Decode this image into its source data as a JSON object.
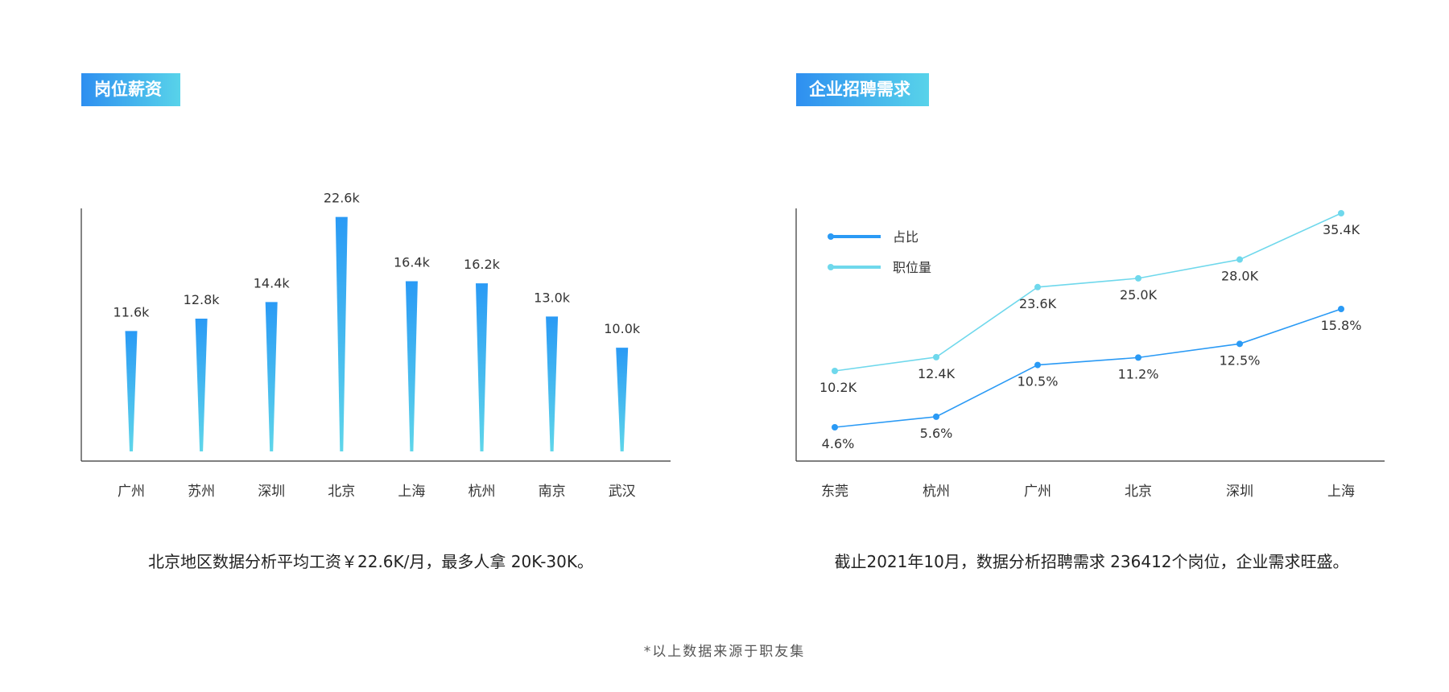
{
  "left_panel": {
    "title": "岗位薪资",
    "caption": "北京地区数据分析平均工资￥22.6K/月，最多人拿 20K-30K。"
  },
  "right_panel": {
    "title": "企业招聘需求",
    "caption": "截止2021年10月，数据分析招聘需求 236412个岗位，企业需求旺盛。"
  },
  "footnote": "*以上数据来源于职友集",
  "colors": {
    "title_gradient": [
      "#2e8ff0",
      "#58d3ea"
    ],
    "bar_top": "#2a9af5",
    "bar_bottom": "#5fd6ea",
    "series_share": "#2a9af5",
    "series_positions": "#6fd8ec"
  },
  "chart_data": [
    {
      "type": "bar",
      "categories": [
        "广州",
        "苏州",
        "深圳",
        "北京",
        "上海",
        "杭州",
        "南京",
        "武汉"
      ],
      "values": [
        11.6,
        12.8,
        14.4,
        22.6,
        16.4,
        16.2,
        13.0,
        10.0
      ],
      "labels": [
        "11.6k",
        "12.8k",
        "14.4k",
        "22.6k",
        "16.4k",
        "16.2k",
        "13.0k",
        "10.0k"
      ],
      "ylim": [
        0,
        23.5
      ],
      "grid": false
    },
    {
      "type": "line",
      "categories": [
        "东莞",
        "杭州",
        "广州",
        "北京",
        "深圳",
        "上海"
      ],
      "series": [
        {
          "name": "占比",
          "values": [
            4.6,
            5.6,
            10.5,
            11.2,
            12.5,
            15.8
          ],
          "labels": [
            "4.6%",
            "5.6%",
            "10.5%",
            "11.2%",
            "12.5%",
            "15.8%"
          ]
        },
        {
          "name": "职位量",
          "values": [
            10.2,
            12.4,
            23.6,
            25.0,
            28.0,
            35.4
          ],
          "labels": [
            "10.2K",
            "12.4K",
            "23.6K",
            "25.0K",
            "28.0K",
            "35.4K"
          ]
        }
      ],
      "legend": "top-left",
      "grid": false
    }
  ]
}
